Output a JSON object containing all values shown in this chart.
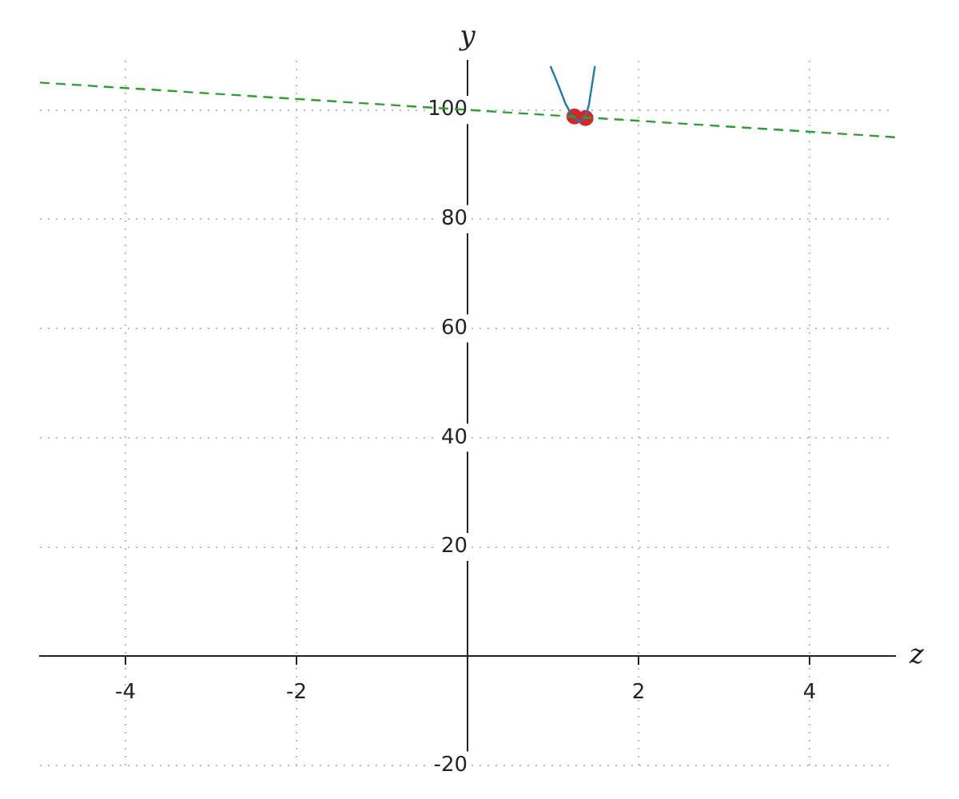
{
  "chart_data": {
    "type": "line",
    "xlabel": "z",
    "ylabel": "y",
    "xlim": [
      -5,
      5
    ],
    "ylim": [
      -20,
      109
    ],
    "xticks": [
      -4,
      -2,
      2,
      4
    ],
    "yticks": [
      -20,
      20,
      40,
      60,
      80,
      100
    ],
    "grid": true,
    "legend": false,
    "series": [
      {
        "color": "#2ca02c",
        "line_style": "dashed",
        "marker": "none",
        "x": [
          -5,
          5
        ],
        "values": [
          105,
          95
        ]
      },
      {
        "color": "#1f77b4",
        "line_style": "solid",
        "marker": "none",
        "x": [
          0.97,
          1.05,
          1.15,
          1.22,
          1.28,
          1.33,
          1.38,
          1.42,
          1.46,
          1.49
        ],
        "values": [
          108,
          105,
          101,
          99,
          98.1,
          97.9,
          98.6,
          101,
          105,
          108
        ]
      },
      {
        "type": "scatter",
        "color": "#d62728",
        "marker": "circle",
        "x": [
          1.25,
          1.38
        ],
        "values": [
          98.8,
          98.5
        ]
      }
    ]
  }
}
